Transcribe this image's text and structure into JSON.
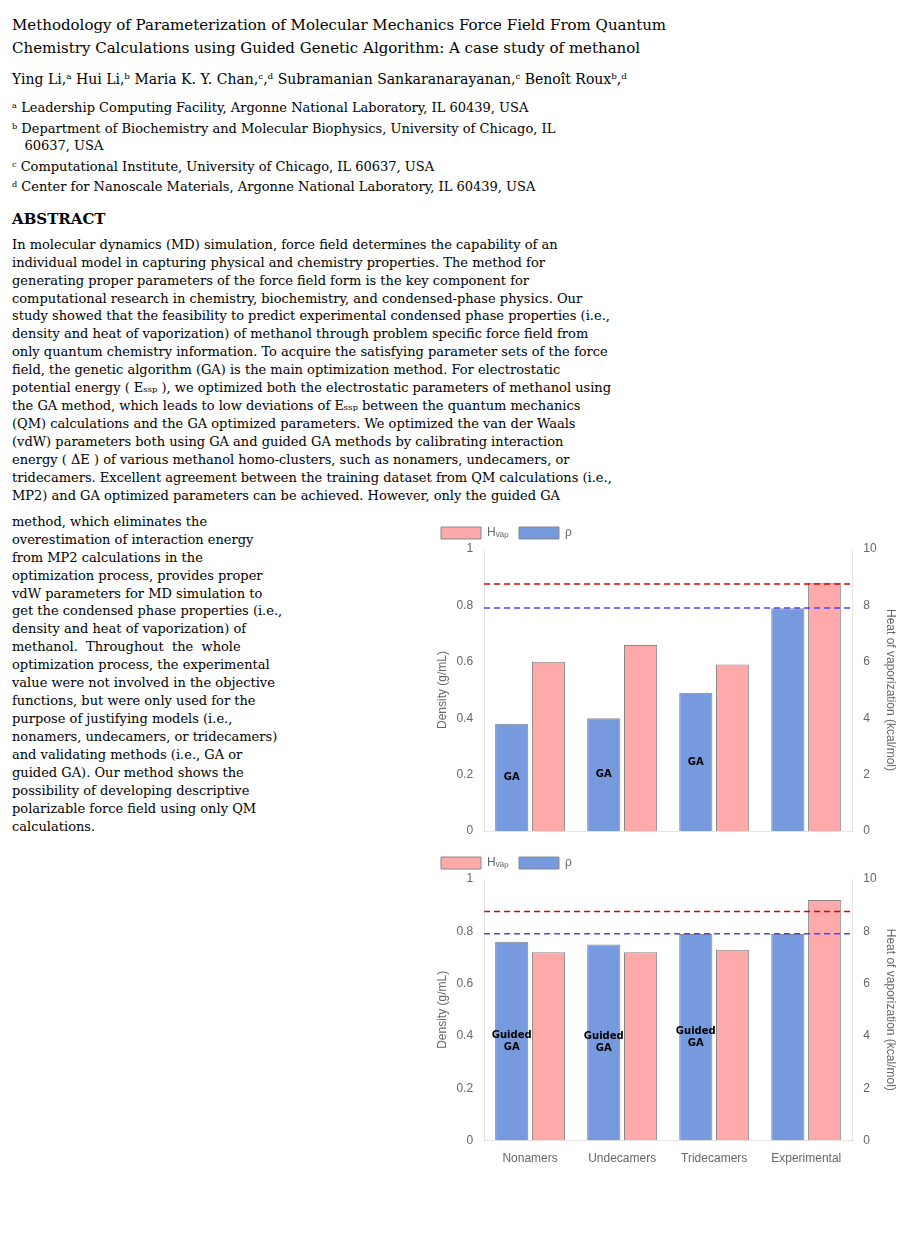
{
  "title": "Methodology of Parameterization of Molecular Mechanics Force Field From Quantum\nChemistry Calculations using Guided Genetic Algorithm: A case study of methanol",
  "annotations": [
    "Ying Li,ᵃ Hui Li,ᵇ Maria K. Y. Chan,ᶜ,ᵈ Subramanian Sankaranarayanan,ᶜ Benoît Rouxᵇ,ᵈ",
    "ᵃ Leadership Computing Facility, Argonne National Laboratory, IL 60439, USA",
    "ᵇ Department of Biochemistry and Molecular Biophysics, University of Chicago, IL\n   60637, USA",
    "ᶜ Computational Institute, University of Chicago, IL 60637, USA",
    "ᵈ Center for Nanoscale Materials, Argonne National Laboratory, IL 60439, USA",
    "ABSTRACT",
    "In molecular dynamics (MD) simulation, force field determines the capability of an\nindividual model in capturing physical and chemistry properties. The method for\ngenerating proper parameters of the force field form is the key component for\ncomputational research in chemistry, biochemistry, and condensed-phase physics. Our\nstudy showed that the feasibility to predict experimental condensed phase properties (i.e.,\ndensity and heat of vaporization) of methanol through problem specific force field from\nonly quantum chemistry information. To acquire the satisfying parameter sets of the force\nfield, the genetic algorithm (GA) is the main optimization method. For electrostatic\npotential energy ( Eₛₛₚ ), we optimized both the electrostatic parameters of methanol using\nthe GA method, which leads to low deviations of Eₛₛₚ between the quantum mechanics\n(QM) calculations and the GA optimized parameters. We optimized the van der Waals\n(vdW) parameters both using GA and guided GA methods by calibrating interaction\nenergy ( ΔE ) of various methanol homo-clusters, such as nonamers, undecamers, or\ntridecamers. Excellent agreement between the training dataset from QM calculations (i.e.,\nMP2) and GA optimized parameters can be achieved. However, only the guided GA",
    "method, which eliminates the\noverestimation of interaction energy\nfrom MP2 calculations in the\noptimization process, provides proper\nvdW parameters for MD simulation to\nget the condensed phase properties (i.e.,\ndensity and heat of vaporization) of\nmethanol.  Throughout  the  whole\noptimization process, the experimental\nvalue were not involved in the objective\nfunctions, but were only used for the\npurpose of justifying models (i.e.,\nnonamers, undecamers, or tridecamers)\nand validating methods (i.e., GA or\nguided GA). Our method shows the\npossibility of developing descriptive\npolarizable force field using only QM\ncalculations."
  ],
  "chart_data": [
    {
      "type": "bar",
      "categories": [
        "Nonamers",
        "Undecamers",
        "Tridecamers",
        "Experimental"
      ],
      "series": [
        {
          "name": "Hᵥₐₚ",
          "color": "#FFAAAA",
          "values": [
            0.6,
            0.66,
            0.59,
            0.88
          ]
        },
        {
          "name": "ρ",
          "color": "#7799DD",
          "values": [
            0.38,
            0.4,
            0.49,
            0.79
          ],
          "bar_labels": [
            "GA",
            "GA",
            "GA",
            null
          ]
        }
      ],
      "ylabel": "Density (g/mL)",
      "y2label": "Heat of vaporization (kcal/mol)",
      "ylim": [
        0,
        1
      ],
      "yticks": [
        0,
        0.2,
        0.4,
        0.6,
        0.8,
        1
      ],
      "y2lim": [
        0,
        10
      ],
      "y2ticks": [
        0,
        2,
        4,
        6,
        8,
        10
      ],
      "reference_lines": [
        {
          "value": 0.876,
          "color": "#DD0000",
          "line_style": "dashed"
        },
        {
          "value": 0.791,
          "color": "#4444FF",
          "line_style": "dashed"
        }
      ],
      "legend": "upper left",
      "grid": false,
      "tick_labels": "y"
    },
    {
      "type": "bar",
      "categories": [
        "Nonamers",
        "Undecamers",
        "Tridecamers",
        "Experimental"
      ],
      "series": [
        {
          "name": "Hᵥₐₚ",
          "color": "#FFAAAA",
          "values": [
            0.72,
            0.72,
            0.73,
            0.92
          ]
        },
        {
          "name": "ρ",
          "color": "#7799DD",
          "values": [
            0.76,
            0.75,
            0.79,
            0.79
          ],
          "bar_labels": [
            "Guided\nGA",
            "Guided\nGA",
            "Guided\nGA",
            null
          ]
        }
      ],
      "ylabel": "Density (g/mL)",
      "y2label": "Heat of vaporization (kcal/mol)",
      "ylim": [
        0,
        1
      ],
      "yticks": [
        0,
        0.2,
        0.4,
        0.6,
        0.8,
        1
      ],
      "y2lim": [
        0,
        10
      ],
      "y2ticks": [
        0,
        2,
        4,
        6,
        8,
        10
      ],
      "reference_lines": [
        {
          "value": 0.876,
          "color": "#DD0000",
          "line_style": "dashed"
        },
        {
          "value": 0.791,
          "color": "#4444FF",
          "line_style": "dashed"
        }
      ],
      "legend": "upper left",
      "grid": false
    }
  ]
}
